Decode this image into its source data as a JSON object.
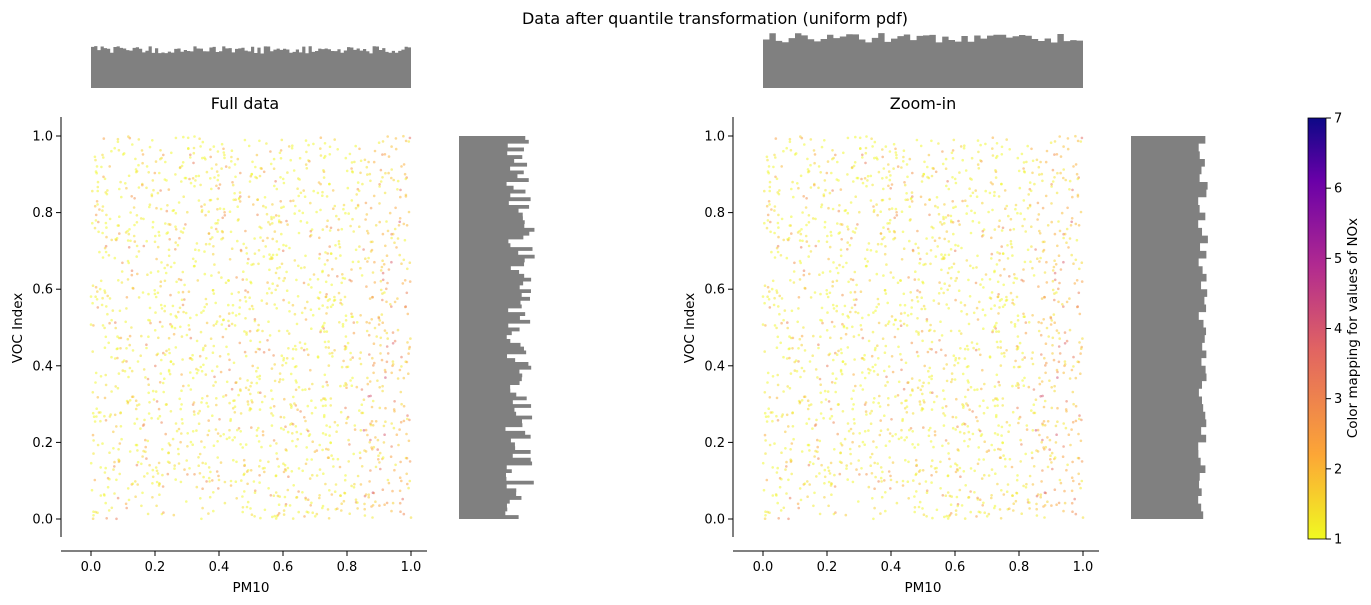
{
  "figure": {
    "suptitle": "Data after quantile transformation (uniform pdf)"
  },
  "colors": {
    "histogram": "#808080",
    "axes": "#000000",
    "colormap": [
      "#f0f921",
      "#fca636",
      "#e16462",
      "#b12a90",
      "#6a00a8",
      "#0d0887"
    ]
  },
  "chart_data": [
    {
      "type": "scatter",
      "title": "Full data",
      "xlabel": "PM10",
      "ylabel": "VOC Index",
      "xlim": [
        -0.05,
        1.05
      ],
      "ylim": [
        -0.05,
        1.05
      ],
      "xticks": [
        "0.0",
        "0.2",
        "0.4",
        "0.6",
        "0.8",
        "1.0"
      ],
      "yticks": [
        "0.0",
        "0.2",
        "0.4",
        "0.6",
        "0.8",
        "1.0"
      ],
      "point_count": 3000,
      "color_variable": "NOx",
      "point_alpha": 0.5,
      "marginal_histograms": {
        "top": "PM10 distribution (uniform)",
        "right": "VOC Index distribution (uniform)",
        "bins": 100
      },
      "grid": false
    },
    {
      "type": "scatter",
      "title": "Zoom-in",
      "xlabel": "PM10",
      "ylabel": "VOC Index",
      "xlim": [
        -0.05,
        1.05
      ],
      "ylim": [
        -0.05,
        1.05
      ],
      "xticks": [
        "0.0",
        "0.2",
        "0.4",
        "0.6",
        "0.8",
        "1.0"
      ],
      "yticks": [
        "0.0",
        "0.2",
        "0.4",
        "0.6",
        "0.8",
        "1.0"
      ],
      "point_count": 3000,
      "color_variable": "NOx",
      "point_alpha": 0.5,
      "marginal_histograms": {
        "top": "PM10 distribution (uniform)",
        "right": "VOC Index distribution (uniform)",
        "bins": 50
      },
      "grid": false
    },
    {
      "type": "heatmap",
      "title": "",
      "ylabel": "Color mapping for values of NOx",
      "range": [
        1,
        7
      ],
      "ticks": [
        "1",
        "2",
        "3",
        "4",
        "5",
        "6",
        "7"
      ],
      "colormap": "plasma_r"
    }
  ]
}
